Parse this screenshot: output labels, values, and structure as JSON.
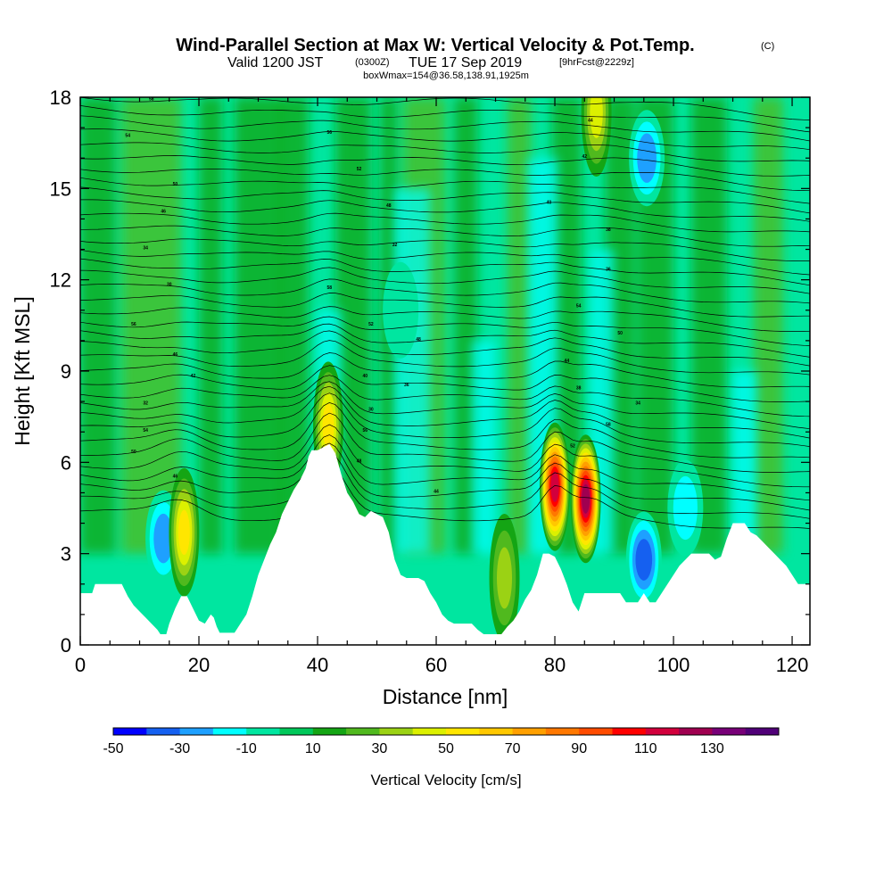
{
  "chart_data": {
    "type": "heatmap",
    "title": "Wind-Parallel Section at Max W: Vertical Velocity & Pot.Temp.",
    "title_mark": "(C)",
    "subtitle_prefix": "Valid 1200 JST",
    "subtitle_utc": "(0300Z)",
    "subtitle_main": "TUE 17 Sep 2019",
    "subtitle_fcst": "[9hrFcst@2229z]",
    "subtitle2": "boxWmax=154@36.58,138.91,1925m",
    "xlabel": "Distance [nm]",
    "ylabel": "Height [Kft MSL]",
    "xlim": [
      0,
      123
    ],
    "ylim": [
      0,
      18
    ],
    "xticks": [
      0,
      20,
      40,
      60,
      80,
      100,
      120
    ],
    "yticks": [
      0,
      3,
      6,
      9,
      12,
      15,
      18
    ],
    "grid": false,
    "colorbar": {
      "label": "Vertical Velocity [cm/s]",
      "placement": "bottom",
      "levels": [
        -50,
        -40,
        -30,
        -20,
        -10,
        0,
        10,
        20,
        30,
        40,
        50,
        60,
        70,
        80,
        90,
        100,
        110,
        120,
        130,
        140
      ],
      "tick_labels": [
        "-50",
        "-30",
        "-10",
        "10",
        "30",
        "50",
        "70",
        "90",
        "110",
        "130"
      ],
      "colors": [
        "#0000ff",
        "#1560f0",
        "#1ea0ff",
        "#00ffff",
        "#00e6a0",
        "#00c85a",
        "#14a514",
        "#50b91e",
        "#9bd214",
        "#dcf000",
        "#ffe600",
        "#ffc800",
        "#ffa000",
        "#ff7800",
        "#ff4b00",
        "#ff0000",
        "#d2003c",
        "#a00050",
        "#780078",
        "#500078"
      ]
    },
    "background_field": "#00e6a0",
    "terrain_kft": [
      [
        0,
        1.7
      ],
      [
        2,
        1.7
      ],
      [
        2.5,
        2
      ],
      [
        7,
        2
      ],
      [
        8,
        1.6
      ],
      [
        9,
        1.3
      ],
      [
        10,
        1.1
      ],
      [
        11,
        0.9
      ],
      [
        12,
        0.7
      ],
      [
        13,
        0.5
      ],
      [
        13.5,
        0.35
      ],
      [
        14.5,
        0.35
      ],
      [
        15,
        0.7
      ],
      [
        16,
        1.2
      ],
      [
        17,
        1.6
      ],
      [
        18,
        1.6
      ],
      [
        19,
        1.2
      ],
      [
        20,
        0.8
      ],
      [
        21,
        0.7
      ],
      [
        22,
        1
      ],
      [
        22.5,
        0.9
      ],
      [
        23,
        0.6
      ],
      [
        23.5,
        0.4
      ],
      [
        26,
        0.4
      ],
      [
        27,
        0.7
      ],
      [
        28,
        1
      ],
      [
        29,
        1.6
      ],
      [
        30,
        2.3
      ],
      [
        31,
        2.8
      ],
      [
        32,
        3.3
      ],
      [
        33,
        3.7
      ],
      [
        34,
        4.3
      ],
      [
        35,
        4.7
      ],
      [
        36,
        5.1
      ],
      [
        37,
        5.4
      ],
      [
        38,
        5.8
      ],
      [
        38.5,
        6.2
      ],
      [
        39,
        6.4
      ],
      [
        40,
        6.4
      ],
      [
        41,
        6.5
      ],
      [
        42,
        6.6
      ],
      [
        43,
        6.3
      ],
      [
        44,
        5.6
      ],
      [
        45,
        5
      ],
      [
        46,
        4.7
      ],
      [
        47,
        4.3
      ],
      [
        48,
        4.2
      ],
      [
        49,
        4.4
      ],
      [
        50,
        4.3
      ],
      [
        51,
        4.2
      ],
      [
        52,
        3.7
      ],
      [
        53,
        2.8
      ],
      [
        54,
        2.3
      ],
      [
        55,
        2.2
      ],
      [
        56,
        2.2
      ],
      [
        57,
        2.2
      ],
      [
        58,
        2.1
      ],
      [
        59,
        1.7
      ],
      [
        60,
        1.4
      ],
      [
        61,
        1
      ],
      [
        62,
        0.8
      ],
      [
        63,
        0.7
      ],
      [
        66,
        0.7
      ],
      [
        67,
        0.5
      ],
      [
        68,
        0.35
      ],
      [
        71,
        0.35
      ],
      [
        72,
        0.6
      ],
      [
        73,
        0.8
      ],
      [
        74,
        1.1
      ],
      [
        75,
        1.5
      ],
      [
        76,
        1.8
      ],
      [
        77,
        2.3
      ],
      [
        78,
        3
      ],
      [
        79,
        3
      ],
      [
        80,
        2.9
      ],
      [
        81,
        2.5
      ],
      [
        82,
        2
      ],
      [
        83,
        1.4
      ],
      [
        84,
        1.1
      ],
      [
        85,
        1.7
      ],
      [
        91,
        1.7
      ],
      [
        92,
        1.4
      ],
      [
        94,
        1.4
      ],
      [
        95,
        1.7
      ],
      [
        96,
        1.4
      ],
      [
        97,
        1.4
      ],
      [
        98,
        1.7
      ],
      [
        99,
        2
      ],
      [
        100,
        2.3
      ],
      [
        101,
        2.6
      ],
      [
        102,
        2.8
      ],
      [
        103,
        3
      ],
      [
        106,
        3
      ],
      [
        107,
        2.8
      ],
      [
        108,
        2.9
      ],
      [
        109,
        3.5
      ],
      [
        110,
        4
      ],
      [
        112,
        4
      ],
      [
        113,
        3.7
      ],
      [
        114,
        3.6
      ],
      [
        115,
        3.4
      ],
      [
        116,
        3.2
      ],
      [
        117,
        3
      ],
      [
        118,
        2.8
      ],
      [
        119,
        2.6
      ],
      [
        120,
        2.3
      ],
      [
        121,
        2
      ],
      [
        123,
        2
      ]
    ],
    "updraft_cores": [
      {
        "x": 17.5,
        "y": 3.7,
        "w_max": 55
      },
      {
        "x": 41.8,
        "y": 7.2,
        "w_max": 50
      },
      {
        "x": 80,
        "y": 5.2,
        "w_max": 110
      },
      {
        "x": 85.2,
        "y": 4.8,
        "w_max": 120
      },
      {
        "x": 87,
        "y": 17.5,
        "w_max": 40
      },
      {
        "x": 71.5,
        "y": 2.2,
        "w_max": 35
      }
    ],
    "downdraft_cores": [
      {
        "x": 14,
        "y": 3.5,
        "w_min": -30
      },
      {
        "x": 95,
        "y": 2.8,
        "w_min": -45
      },
      {
        "x": 102,
        "y": 4.5,
        "w_min": -25
      },
      {
        "x": 54,
        "y": 11,
        "w_min": -15
      },
      {
        "x": 95.5,
        "y": 16,
        "w_min": -35
      }
    ],
    "theta_contours": {
      "interval_K": 1,
      "label_values": [
        "58",
        "54",
        "56",
        "52",
        "50",
        "48",
        "46",
        "44",
        "42",
        "40",
        "38",
        "36",
        "34",
        "32",
        "30"
      ]
    }
  }
}
